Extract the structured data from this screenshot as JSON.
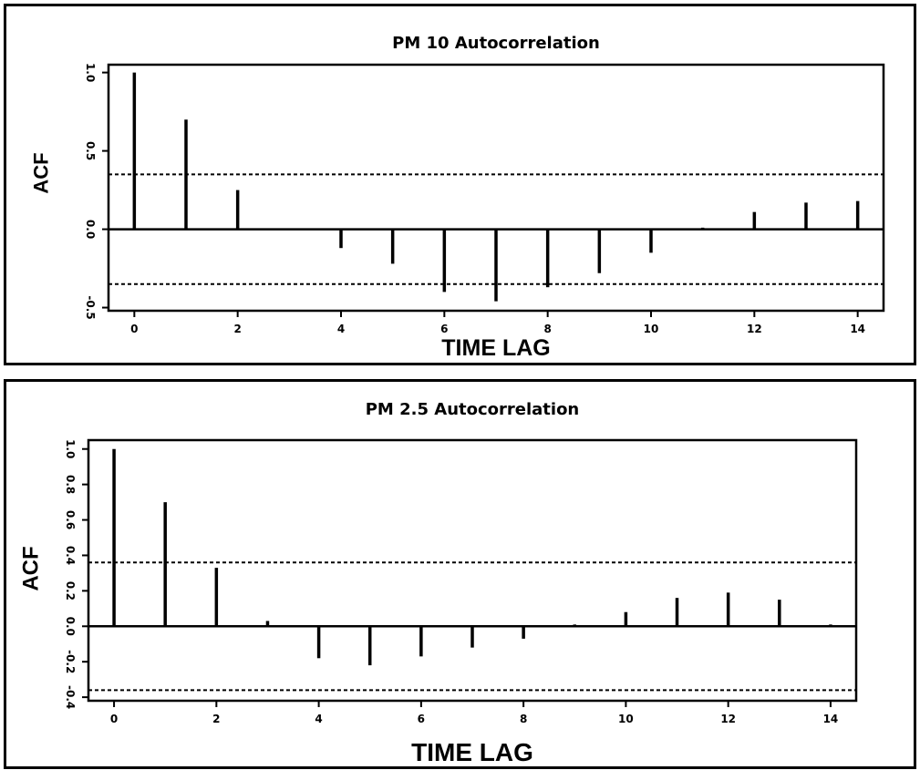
{
  "chart_data": [
    {
      "type": "bar",
      "subtype": "autocorrelation",
      "title": "PM 10 Autocorrelation",
      "xlabel": "TIME LAG",
      "ylabel": "ACF",
      "x_ticks": [
        0,
        2,
        4,
        6,
        8,
        10,
        12,
        14
      ],
      "y_ticks": [
        -0.5,
        0.0,
        0.5,
        1.0
      ],
      "y_tick_labels": [
        "-0.5",
        "0.0",
        "0.5",
        "1.0"
      ],
      "xlim": [
        -0.5,
        14.5
      ],
      "ylim": [
        -0.52,
        1.05
      ],
      "lags": [
        0,
        1,
        2,
        3,
        4,
        5,
        6,
        7,
        8,
        9,
        10,
        11,
        12,
        13,
        14
      ],
      "values": [
        1.0,
        0.7,
        0.25,
        0.0,
        -0.12,
        -0.22,
        -0.4,
        -0.46,
        -0.37,
        -0.28,
        -0.15,
        0.01,
        0.11,
        0.17,
        0.18
      ],
      "confidence_bounds": [
        0.35,
        -0.35
      ],
      "grid": false,
      "legend": "none"
    },
    {
      "type": "bar",
      "subtype": "autocorrelation",
      "title": "PM 2.5 Autocorrelation",
      "xlabel": "TIME LAG",
      "ylabel": "ACF",
      "x_ticks": [
        0,
        2,
        4,
        6,
        8,
        10,
        12,
        14
      ],
      "y_ticks": [
        -0.4,
        -0.2,
        0.0,
        0.2,
        0.4,
        0.6,
        0.8,
        1.0
      ],
      "y_tick_labels": [
        "-0.4",
        "-0.2",
        "0.0",
        "0.2",
        "0.4",
        "0.6",
        "0.8",
        "1.0"
      ],
      "xlim": [
        -0.5,
        14.5
      ],
      "ylim": [
        -0.42,
        1.05
      ],
      "lags": [
        0,
        1,
        2,
        3,
        4,
        5,
        6,
        7,
        8,
        9,
        10,
        11,
        12,
        13,
        14
      ],
      "values": [
        1.0,
        0.7,
        0.33,
        0.03,
        -0.18,
        -0.22,
        -0.17,
        -0.12,
        -0.07,
        0.01,
        0.08,
        0.16,
        0.19,
        0.15,
        0.01
      ],
      "confidence_bounds": [
        0.36,
        -0.36
      ],
      "grid": false,
      "legend": "none"
    }
  ]
}
